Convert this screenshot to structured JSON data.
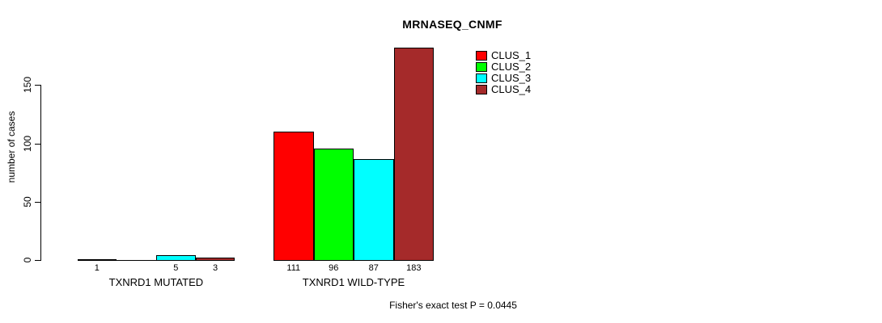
{
  "chart_data": {
    "type": "bar",
    "title": "MRNASEQ_CNMF",
    "ylabel": "number of cases",
    "xlabel": "",
    "ylim": [
      0,
      150
    ],
    "yticks": [
      0,
      50,
      100,
      150
    ],
    "grid": false,
    "legend_position": "top-right",
    "categories": [
      "TXNRD1 MUTATED",
      "TXNRD1 WILD-TYPE"
    ],
    "series": [
      {
        "name": "CLUS_1",
        "color": "#ff0000",
        "values": [
          1,
          111
        ]
      },
      {
        "name": "CLUS_2",
        "color": "#00ff00",
        "values": [
          0,
          96
        ]
      },
      {
        "name": "CLUS_3",
        "color": "#00ffff",
        "values": [
          5,
          87
        ]
      },
      {
        "name": "CLUS_4",
        "color": "#a52a2a",
        "values": [
          3,
          183
        ]
      }
    ],
    "bar_value_labels": {
      "TXNRD1 MUTATED": [
        "1",
        "",
        "5",
        "3"
      ],
      "TXNRD1 WILD-TYPE": [
        "111",
        "96",
        "87",
        "183"
      ]
    },
    "annotation": "Fisher's exact test P = 0.0445"
  }
}
